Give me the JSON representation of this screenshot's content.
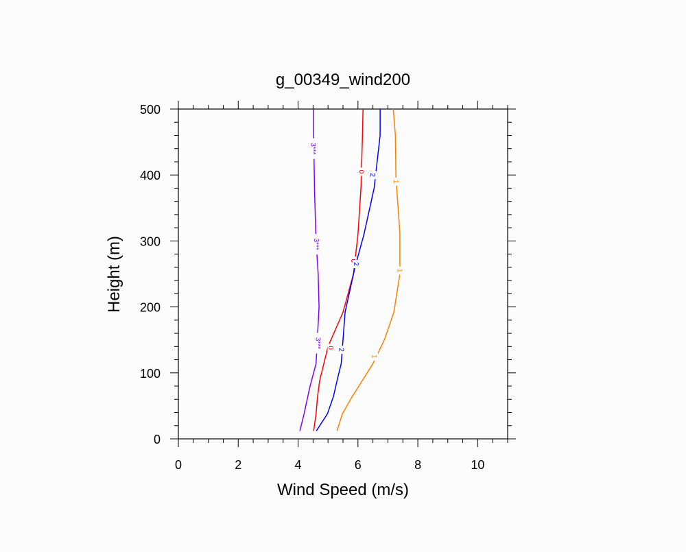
{
  "chart_data": {
    "type": "line",
    "title": "g_00349_wind200",
    "xlabel": "Wind Speed (m/s)",
    "ylabel": "Height (m)",
    "xlim": [
      0,
      11
    ],
    "ylim": [
      0,
      500
    ],
    "xticks": [
      0,
      2,
      4,
      6,
      8,
      10
    ],
    "yticks": [
      0,
      100,
      200,
      300,
      400,
      500
    ],
    "grid": false,
    "series": [
      {
        "label": "3***",
        "color": "#8000ff",
        "label_at": [
          [
            4.52,
            440
          ],
          [
            4.62,
            295
          ],
          [
            4.68,
            145
          ]
        ],
        "points": [
          [
            4.06,
            12
          ],
          [
            4.2,
            38
          ],
          [
            4.4,
            80
          ],
          [
            4.6,
            114
          ],
          [
            4.7,
            200
          ],
          [
            4.67,
            250
          ],
          [
            4.6,
            300
          ],
          [
            4.55,
            375
          ],
          [
            4.52,
            460
          ],
          [
            4.52,
            500
          ]
        ]
      },
      {
        "label": "0",
        "color": "#ff0000",
        "label_at": [
          [
            6.12,
            405
          ],
          [
            5.85,
            270
          ],
          [
            5.1,
            138
          ]
        ],
        "points": [
          [
            4.52,
            12
          ],
          [
            4.6,
            38
          ],
          [
            4.65,
            64
          ],
          [
            4.72,
            88
          ],
          [
            5.0,
            140
          ],
          [
            5.5,
            192
          ],
          [
            5.85,
            250
          ],
          [
            6.0,
            310
          ],
          [
            6.1,
            380
          ],
          [
            6.15,
            460
          ],
          [
            6.17,
            500
          ]
        ]
      },
      {
        "label": "2",
        "color": "#0000ff",
        "label_at": [
          [
            6.5,
            400
          ],
          [
            5.95,
            265
          ],
          [
            5.45,
            135
          ]
        ],
        "points": [
          [
            4.61,
            12
          ],
          [
            4.98,
            38
          ],
          [
            5.18,
            64
          ],
          [
            5.3,
            88
          ],
          [
            5.44,
            114
          ],
          [
            5.57,
            192
          ],
          [
            5.9,
            260
          ],
          [
            6.2,
            310
          ],
          [
            6.54,
            380
          ],
          [
            6.74,
            460
          ],
          [
            6.74,
            500
          ]
        ]
      },
      {
        "label": "1",
        "color": "#ff8000",
        "label_at": [
          [
            7.28,
            390
          ],
          [
            7.4,
            255
          ],
          [
            6.55,
            125
          ]
        ],
        "points": [
          [
            5.3,
            12
          ],
          [
            5.48,
            38
          ],
          [
            5.78,
            62
          ],
          [
            6.5,
            114
          ],
          [
            6.88,
            150
          ],
          [
            7.2,
            192
          ],
          [
            7.4,
            250
          ],
          [
            7.4,
            312
          ],
          [
            7.27,
            395
          ],
          [
            7.25,
            460
          ],
          [
            7.18,
            500
          ]
        ]
      }
    ]
  }
}
